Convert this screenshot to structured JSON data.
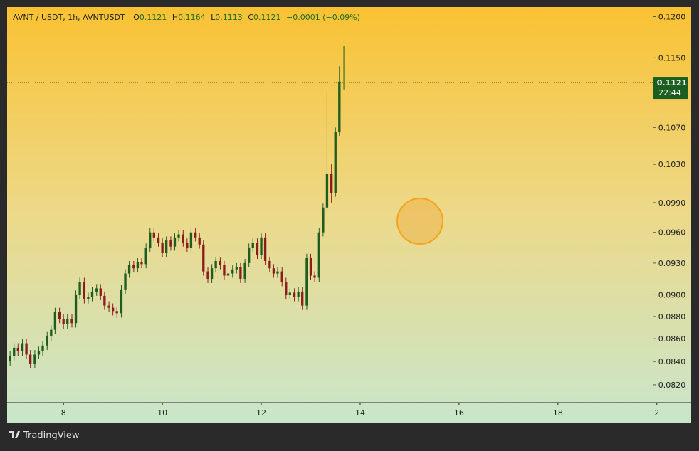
{
  "chart_data": {
    "type": "candlestick",
    "symbol": "AVNT / USDT, 1h, AVNTUSDT",
    "ohlc_labels": [
      "O",
      "H",
      "L",
      "C"
    ],
    "change": "−0.0001 (−0.09%)",
    "countdown": "22:44",
    "watermark": "TradingView",
    "log_scale": true,
    "up_color": "#1f5d1f",
    "down_color": "#8c1d1d",
    "last_price_color": "#1b5e20",
    "xlim": [
      6.86,
      20.68
    ],
    "xticks": [
      8,
      10,
      12,
      14,
      16,
      18,
      {
        "value": 20,
        "label": "2"
      }
    ],
    "ylim": [
      0.0805,
      0.1212
    ],
    "yticks": [
      {
        "value": 0.12,
        "label": "0.1200"
      },
      {
        "value": 0.115,
        "label": "0.1150"
      },
      {
        "value": 0.107,
        "label": "0.1070"
      },
      {
        "value": 0.103,
        "label": "0.1030"
      },
      {
        "value": 0.099,
        "label": "0.0990"
      },
      {
        "value": 0.096,
        "label": "0.0960"
      },
      {
        "value": 0.093,
        "label": "0.0930"
      },
      {
        "value": 0.09,
        "label": "0.0900"
      },
      {
        "value": 0.088,
        "label": "0.0880"
      },
      {
        "value": 0.086,
        "label": "0.0860"
      },
      {
        "value": 0.084,
        "label": "0.0840"
      },
      {
        "value": 0.082,
        "label": "0.0820"
      }
    ],
    "x": [
      6.92,
      7.0,
      7.08,
      7.17,
      7.25,
      7.33,
      7.42,
      7.5,
      7.58,
      7.67,
      7.75,
      7.83,
      7.92,
      8.0,
      8.08,
      8.17,
      8.25,
      8.33,
      8.42,
      8.5,
      8.58,
      8.67,
      8.75,
      8.83,
      8.92,
      9.0,
      9.08,
      9.17,
      9.25,
      9.33,
      9.42,
      9.5,
      9.58,
      9.67,
      9.75,
      9.83,
      9.92,
      10.0,
      10.08,
      10.17,
      10.25,
      10.33,
      10.42,
      10.5,
      10.58,
      10.67,
      10.75,
      10.83,
      10.92,
      11.0,
      11.08,
      11.17,
      11.25,
      11.33,
      11.42,
      11.5,
      11.58,
      11.67,
      11.75,
      11.83,
      11.92,
      12.0,
      12.08,
      12.17,
      12.25,
      12.33,
      12.42,
      12.5,
      12.58,
      12.67,
      12.75,
      12.83,
      12.92,
      13.0,
      13.08,
      13.17,
      13.25,
      13.33,
      13.42,
      13.5,
      13.58,
      13.67
    ],
    "open": [
      0.084,
      0.0845,
      0.0852,
      0.0849,
      0.0856,
      0.0846,
      0.0838,
      0.0846,
      0.0849,
      0.0854,
      0.0862,
      0.0868,
      0.0884,
      0.0878,
      0.0873,
      0.0878,
      0.0874,
      0.09,
      0.0912,
      0.0896,
      0.0898,
      0.0903,
      0.0906,
      0.0899,
      0.089,
      0.0888,
      0.0885,
      0.0883,
      0.0905,
      0.092,
      0.0928,
      0.0925,
      0.0931,
      0.0929,
      0.0945,
      0.096,
      0.0955,
      0.095,
      0.094,
      0.0952,
      0.0946,
      0.0955,
      0.0958,
      0.095,
      0.0945,
      0.096,
      0.0955,
      0.0948,
      0.0922,
      0.0915,
      0.0925,
      0.0932,
      0.0928,
      0.0918,
      0.092,
      0.0924,
      0.0926,
      0.0915,
      0.093,
      0.0945,
      0.095,
      0.0938,
      0.0955,
      0.0932,
      0.0925,
      0.092,
      0.0922,
      0.0912,
      0.09,
      0.0902,
      0.0898,
      0.0903,
      0.089,
      0.0935,
      0.0918,
      0.0916,
      0.096,
      0.0985,
      0.102,
      0.1,
      0.1065,
      0.1121
    ],
    "high": [
      0.0849,
      0.0856,
      0.0856,
      0.086,
      0.086,
      0.085,
      0.085,
      0.0853,
      0.0858,
      0.0866,
      0.0872,
      0.0888,
      0.0888,
      0.0882,
      0.0882,
      0.0882,
      0.0904,
      0.0916,
      0.0916,
      0.0902,
      0.0907,
      0.091,
      0.091,
      0.0903,
      0.0894,
      0.0892,
      0.0889,
      0.0909,
      0.0924,
      0.0932,
      0.0932,
      0.0935,
      0.0935,
      0.0949,
      0.0964,
      0.0964,
      0.0959,
      0.0954,
      0.0956,
      0.0956,
      0.0959,
      0.0962,
      0.0962,
      0.0954,
      0.0964,
      0.0964,
      0.0959,
      0.0952,
      0.0926,
      0.0929,
      0.0936,
      0.0936,
      0.0932,
      0.0924,
      0.0928,
      0.093,
      0.093,
      0.0934,
      0.0949,
      0.0954,
      0.0954,
      0.0959,
      0.0959,
      0.0936,
      0.0929,
      0.0926,
      0.0926,
      0.0916,
      0.0906,
      0.0906,
      0.0907,
      0.0907,
      0.0939,
      0.0939,
      0.0922,
      0.0964,
      0.0989,
      0.111,
      0.103,
      0.107,
      0.114,
      0.1164
    ],
    "low": [
      0.0836,
      0.0841,
      0.0845,
      0.0845,
      0.0842,
      0.0834,
      0.0834,
      0.0842,
      0.0845,
      0.085,
      0.0858,
      0.0864,
      0.0874,
      0.0869,
      0.0869,
      0.087,
      0.087,
      0.0896,
      0.0892,
      0.0892,
      0.0894,
      0.0899,
      0.0895,
      0.0886,
      0.0884,
      0.0881,
      0.0879,
      0.0879,
      0.0901,
      0.0916,
      0.0921,
      0.0921,
      0.0925,
      0.0925,
      0.0941,
      0.0951,
      0.0946,
      0.0936,
      0.0936,
      0.0942,
      0.0942,
      0.0951,
      0.0946,
      0.0941,
      0.0941,
      0.0951,
      0.0944,
      0.0918,
      0.0911,
      0.0911,
      0.0921,
      0.0924,
      0.0914,
      0.0914,
      0.0916,
      0.092,
      0.0911,
      0.0911,
      0.0926,
      0.0941,
      0.0934,
      0.0934,
      0.0928,
      0.0921,
      0.0916,
      0.0916,
      0.0908,
      0.0896,
      0.0896,
      0.0894,
      0.0894,
      0.0886,
      0.0886,
      0.0914,
      0.0912,
      0.0912,
      0.0956,
      0.0981,
      0.099,
      0.0996,
      0.1061,
      0.1113
    ],
    "close": [
      0.0845,
      0.0852,
      0.0849,
      0.0856,
      0.0846,
      0.0838,
      0.0846,
      0.0849,
      0.0854,
      0.0862,
      0.0868,
      0.0884,
      0.0878,
      0.0873,
      0.0878,
      0.0874,
      0.09,
      0.0912,
      0.0896,
      0.0898,
      0.0903,
      0.0906,
      0.0899,
      0.089,
      0.0888,
      0.0885,
      0.0883,
      0.0905,
      0.092,
      0.0928,
      0.0925,
      0.0931,
      0.0929,
      0.0945,
      0.096,
      0.0955,
      0.095,
      0.094,
      0.0952,
      0.0946,
      0.0955,
      0.0958,
      0.095,
      0.0945,
      0.096,
      0.0955,
      0.0948,
      0.0922,
      0.0915,
      0.0925,
      0.0932,
      0.0928,
      0.0918,
      0.092,
      0.0924,
      0.0926,
      0.0915,
      0.093,
      0.0945,
      0.095,
      0.0938,
      0.0955,
      0.0932,
      0.0925,
      0.092,
      0.0922,
      0.0912,
      0.09,
      0.0902,
      0.0898,
      0.0903,
      0.089,
      0.0935,
      0.0918,
      0.0916,
      0.096,
      0.0985,
      0.102,
      0.1,
      0.1065,
      0.1122,
      0.1121
    ]
  }
}
